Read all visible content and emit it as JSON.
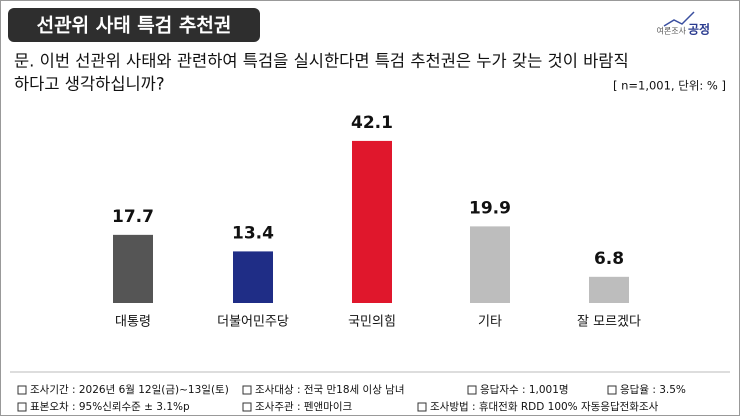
{
  "header": {
    "title": "선관위 사태 특검 추천권",
    "logo_small": "여론조사",
    "logo_main": "공정"
  },
  "question": {
    "line1": "문. 이번 선관위 사태와 관련하여 특검을 실시한다면 특검 추천권은 누가 갖는 것이 바람직",
    "line2": "하다고 생각하십니까?",
    "note": "[ n=1,001, 단위: % ]"
  },
  "chart_data": {
    "type": "bar",
    "categories": [
      "대통령",
      "더불어민주당",
      "국민의힘",
      "기타",
      "잘 모르겠다"
    ],
    "values": [
      17.7,
      13.4,
      42.1,
      19.9,
      6.8
    ],
    "colors": [
      "#555555",
      "#1f2d86",
      "#e0172c",
      "#bdbdbd",
      "#bdbdbd"
    ]
  },
  "footer": {
    "notes": [
      "조사기간 : 2026년 6월 12일(금)~13일(토)",
      "조사대상 : 전국 만18세 이상 남녀",
      "응답자수 : 1,001명",
      "응답율 : 3.5%",
      "표본오차 : 95%신뢰수준 ± 3.1%p",
      "조사주관 : 펜앤마이크",
      "조사방법 : 휴대전화 RDD 100% 자동응답전화조사"
    ]
  }
}
